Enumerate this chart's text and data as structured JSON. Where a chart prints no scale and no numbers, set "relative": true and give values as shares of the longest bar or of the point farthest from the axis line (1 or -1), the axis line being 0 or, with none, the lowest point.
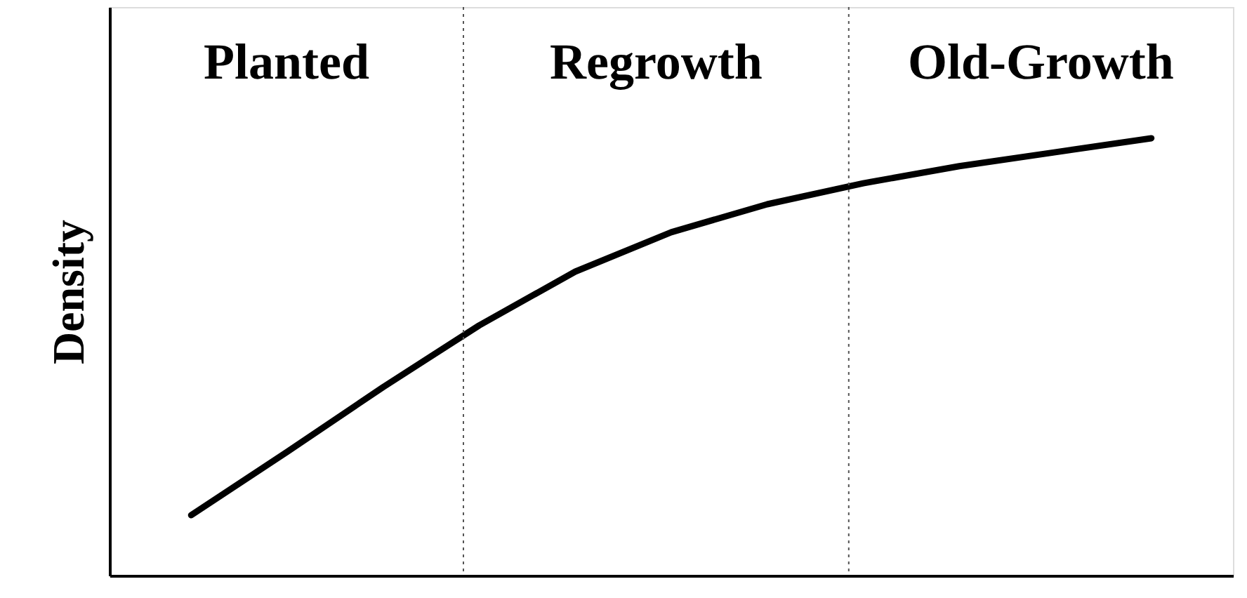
{
  "chart_data": {
    "type": "line",
    "relative": true,
    "ylabel": "Density",
    "marker": "none",
    "line_style": "solid",
    "categories": [
      null,
      null,
      null,
      null,
      null,
      null,
      null,
      null,
      null,
      null,
      null
    ],
    "series": [
      {
        "color": "#000000",
        "values": [
          0.138,
          0.283,
          0.431,
          0.572,
          0.695,
          0.785,
          0.849,
          0.897,
          0.936,
          0.968,
          1.0
        ]
      }
    ],
    "annotations": [
      "Planted",
      "Regrowth",
      "Old-Growth"
    ]
  }
}
